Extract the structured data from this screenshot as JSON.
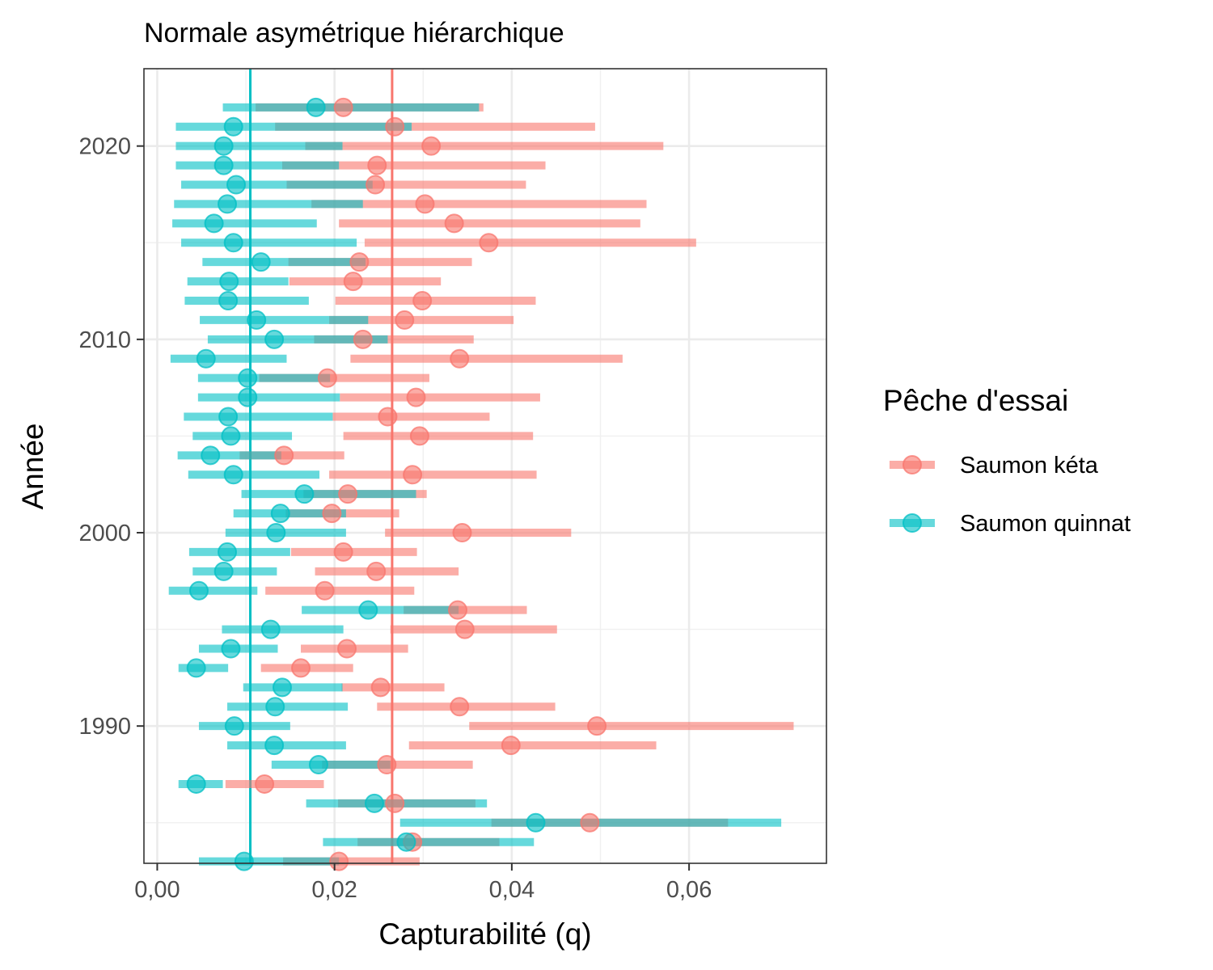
{
  "chart_data": {
    "type": "pointrange",
    "title": "Normale asymétrique hiérarchique",
    "xlabel": "Capturabilité (q)",
    "ylabel": "Année",
    "xlim": [
      -0.0015,
      0.0755
    ],
    "ylim": [
      1982.9,
      2024.0
    ],
    "x_ticks": [
      0,
      0.02,
      0.04,
      0.06
    ],
    "x_tick_labels": [
      "0,00",
      "0,02",
      "0,04",
      "0,06"
    ],
    "y_ticks": [
      1990,
      2000,
      2010,
      2020
    ],
    "y_tick_labels": [
      "1990",
      "2000",
      "2010",
      "2020"
    ],
    "grid": true,
    "legend": {
      "title": "Pêche d'essai",
      "position": "right",
      "entries": [
        "Saumon kéta",
        "Saumon quinnat"
      ]
    },
    "reference_lines": [
      {
        "series": "Saumon kéta",
        "x": 0.0265,
        "color": "#F8766D"
      },
      {
        "series": "Saumon quinnat",
        "x": 0.0105,
        "color": "#00BFC4"
      }
    ],
    "series": [
      {
        "name": "Saumon kéta",
        "color": "#F8766D",
        "points": [
          {
            "year": 1983,
            "est": 0.0205,
            "lo": 0.0142,
            "hi": 0.0296
          },
          {
            "year": 1984,
            "est": 0.0288,
            "lo": 0.0226,
            "hi": 0.0386
          },
          {
            "year": 1985,
            "est": 0.0488,
            "lo": 0.0377,
            "hi": 0.0644
          },
          {
            "year": 1986,
            "est": 0.0268,
            "lo": 0.0204,
            "hi": 0.0359
          },
          {
            "year": 1987,
            "est": 0.0121,
            "lo": 0.0077,
            "hi": 0.0188
          },
          {
            "year": 1988,
            "est": 0.0259,
            "lo": 0.0186,
            "hi": 0.0356
          },
          {
            "year": 1989,
            "est": 0.0399,
            "lo": 0.0284,
            "hi": 0.0563
          },
          {
            "year": 1990,
            "est": 0.0496,
            "lo": 0.0352,
            "hi": 0.0718
          },
          {
            "year": 1991,
            "est": 0.0341,
            "lo": 0.0248,
            "hi": 0.0449
          },
          {
            "year": 1992,
            "est": 0.0252,
            "lo": 0.0208,
            "hi": 0.0324
          },
          {
            "year": 1993,
            "est": 0.0162,
            "lo": 0.0117,
            "hi": 0.0221
          },
          {
            "year": 1994,
            "est": 0.0214,
            "lo": 0.0162,
            "hi": 0.0283
          },
          {
            "year": 1995,
            "est": 0.0347,
            "lo": 0.0263,
            "hi": 0.0451
          },
          {
            "year": 1996,
            "est": 0.0339,
            "lo": 0.0278,
            "hi": 0.0417
          },
          {
            "year": 1997,
            "est": 0.0189,
            "lo": 0.0122,
            "hi": 0.029
          },
          {
            "year": 1998,
            "est": 0.0247,
            "lo": 0.0178,
            "hi": 0.034
          },
          {
            "year": 1999,
            "est": 0.021,
            "lo": 0.0151,
            "hi": 0.0293
          },
          {
            "year": 2000,
            "est": 0.0344,
            "lo": 0.0257,
            "hi": 0.0467
          },
          {
            "year": 2001,
            "est": 0.0197,
            "lo": 0.0145,
            "hi": 0.0273
          },
          {
            "year": 2002,
            "est": 0.0215,
            "lo": 0.0165,
            "hi": 0.0304
          },
          {
            "year": 2003,
            "est": 0.0288,
            "lo": 0.0194,
            "hi": 0.0428
          },
          {
            "year": 2004,
            "est": 0.0143,
            "lo": 0.0093,
            "hi": 0.0211
          },
          {
            "year": 2005,
            "est": 0.0296,
            "lo": 0.021,
            "hi": 0.0424
          },
          {
            "year": 2006,
            "est": 0.026,
            "lo": 0.0198,
            "hi": 0.0375
          },
          {
            "year": 2007,
            "est": 0.0292,
            "lo": 0.0206,
            "hi": 0.0432
          },
          {
            "year": 2008,
            "est": 0.0192,
            "lo": 0.0115,
            "hi": 0.0307
          },
          {
            "year": 2009,
            "est": 0.0341,
            "lo": 0.0218,
            "hi": 0.0525
          },
          {
            "year": 2010,
            "est": 0.0232,
            "lo": 0.0177,
            "hi": 0.0357
          },
          {
            "year": 2011,
            "est": 0.0279,
            "lo": 0.0194,
            "hi": 0.0402
          },
          {
            "year": 2012,
            "est": 0.0299,
            "lo": 0.0201,
            "hi": 0.0427
          },
          {
            "year": 2013,
            "est": 0.0221,
            "lo": 0.0149,
            "hi": 0.032
          },
          {
            "year": 2014,
            "est": 0.0228,
            "lo": 0.0148,
            "hi": 0.0355
          },
          {
            "year": 2015,
            "est": 0.0374,
            "lo": 0.0234,
            "hi": 0.0608
          },
          {
            "year": 2016,
            "est": 0.0335,
            "lo": 0.0205,
            "hi": 0.0545
          },
          {
            "year": 2017,
            "est": 0.0302,
            "lo": 0.0174,
            "hi": 0.0552
          },
          {
            "year": 2018,
            "est": 0.0246,
            "lo": 0.0146,
            "hi": 0.0416
          },
          {
            "year": 2019,
            "est": 0.0248,
            "lo": 0.0141,
            "hi": 0.0438
          },
          {
            "year": 2020,
            "est": 0.0309,
            "lo": 0.0167,
            "hi": 0.0571
          },
          {
            "year": 2021,
            "est": 0.0268,
            "lo": 0.0133,
            "hi": 0.0494
          },
          {
            "year": 2022,
            "est": 0.021,
            "lo": 0.0111,
            "hi": 0.0368
          }
        ]
      },
      {
        "name": "Saumon quinnat",
        "color": "#00BFC4",
        "points": [
          {
            "year": 1983,
            "est": 0.0098,
            "lo": 0.0047,
            "hi": 0.0205
          },
          {
            "year": 1984,
            "est": 0.0281,
            "lo": 0.0187,
            "hi": 0.0425
          },
          {
            "year": 1985,
            "est": 0.0427,
            "lo": 0.0274,
            "hi": 0.0704
          },
          {
            "year": 1986,
            "est": 0.0245,
            "lo": 0.0168,
            "hi": 0.0372
          },
          {
            "year": 1987,
            "est": 0.0044,
            "lo": 0.0024,
            "hi": 0.0074
          },
          {
            "year": 1988,
            "est": 0.0182,
            "lo": 0.0129,
            "hi": 0.0263
          },
          {
            "year": 1989,
            "est": 0.0132,
            "lo": 0.0079,
            "hi": 0.0213
          },
          {
            "year": 1990,
            "est": 0.0087,
            "lo": 0.0047,
            "hi": 0.015
          },
          {
            "year": 1991,
            "est": 0.0133,
            "lo": 0.0079,
            "hi": 0.0215
          },
          {
            "year": 1992,
            "est": 0.0141,
            "lo": 0.0097,
            "hi": 0.0209
          },
          {
            "year": 1993,
            "est": 0.0044,
            "lo": 0.0024,
            "hi": 0.008
          },
          {
            "year": 1994,
            "est": 0.0083,
            "lo": 0.0047,
            "hi": 0.0136
          },
          {
            "year": 1995,
            "est": 0.0128,
            "lo": 0.0073,
            "hi": 0.021
          },
          {
            "year": 1996,
            "est": 0.0238,
            "lo": 0.0163,
            "hi": 0.034
          },
          {
            "year": 1997,
            "est": 0.0047,
            "lo": 0.0013,
            "hi": 0.0113
          },
          {
            "year": 1998,
            "est": 0.0075,
            "lo": 0.004,
            "hi": 0.0135
          },
          {
            "year": 1999,
            "est": 0.0079,
            "lo": 0.0036,
            "hi": 0.015
          },
          {
            "year": 2000,
            "est": 0.0134,
            "lo": 0.0077,
            "hi": 0.0213
          },
          {
            "year": 2001,
            "est": 0.0139,
            "lo": 0.0086,
            "hi": 0.0213
          },
          {
            "year": 2002,
            "est": 0.0166,
            "lo": 0.0095,
            "hi": 0.0292
          },
          {
            "year": 2003,
            "est": 0.0086,
            "lo": 0.0035,
            "hi": 0.0183
          },
          {
            "year": 2004,
            "est": 0.006,
            "lo": 0.0023,
            "hi": 0.014
          },
          {
            "year": 2005,
            "est": 0.0083,
            "lo": 0.004,
            "hi": 0.0152
          },
          {
            "year": 2006,
            "est": 0.008,
            "lo": 0.003,
            "hi": 0.0198
          },
          {
            "year": 2007,
            "est": 0.0102,
            "lo": 0.0046,
            "hi": 0.0206
          },
          {
            "year": 2008,
            "est": 0.0102,
            "lo": 0.0046,
            "hi": 0.0195
          },
          {
            "year": 2009,
            "est": 0.0055,
            "lo": 0.0015,
            "hi": 0.0146
          },
          {
            "year": 2010,
            "est": 0.0132,
            "lo": 0.0057,
            "hi": 0.026
          },
          {
            "year": 2011,
            "est": 0.0112,
            "lo": 0.0048,
            "hi": 0.0238
          },
          {
            "year": 2012,
            "est": 0.008,
            "lo": 0.0031,
            "hi": 0.0171
          },
          {
            "year": 2013,
            "est": 0.0081,
            "lo": 0.0034,
            "hi": 0.0148
          },
          {
            "year": 2014,
            "est": 0.0117,
            "lo": 0.0051,
            "hi": 0.0235
          },
          {
            "year": 2015,
            "est": 0.0086,
            "lo": 0.0027,
            "hi": 0.0225
          },
          {
            "year": 2016,
            "est": 0.0064,
            "lo": 0.0017,
            "hi": 0.018
          },
          {
            "year": 2017,
            "est": 0.0079,
            "lo": 0.0019,
            "hi": 0.0232
          },
          {
            "year": 2018,
            "est": 0.0089,
            "lo": 0.0027,
            "hi": 0.0243
          },
          {
            "year": 2019,
            "est": 0.0075,
            "lo": 0.0021,
            "hi": 0.0205
          },
          {
            "year": 2020,
            "est": 0.0075,
            "lo": 0.0021,
            "hi": 0.0209
          },
          {
            "year": 2021,
            "est": 0.0086,
            "lo": 0.0021,
            "hi": 0.0287
          },
          {
            "year": 2022,
            "est": 0.0179,
            "lo": 0.0074,
            "hi": 0.0363
          }
        ]
      }
    ]
  }
}
